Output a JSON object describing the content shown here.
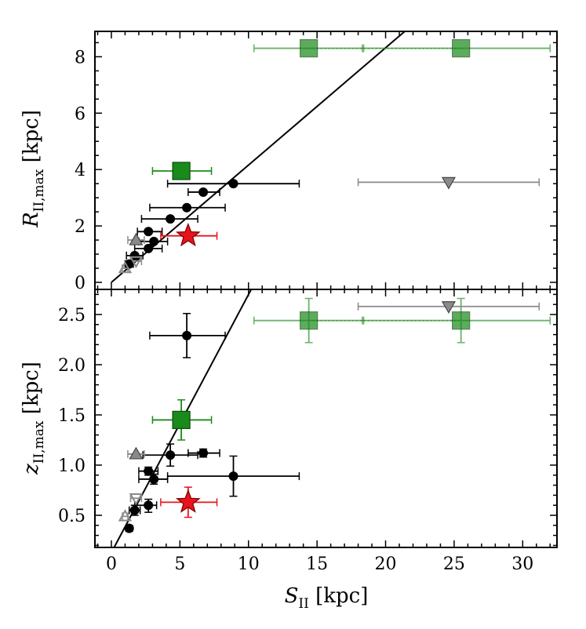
{
  "chart_data": [
    {
      "type": "scatter",
      "panel": "top",
      "xlabel": "",
      "ylabel_main": "R",
      "ylabel_sub": "II,max",
      "ylabel_unit": " [kpc]",
      "xlim": [
        -1.2,
        32.5
      ],
      "ylim": [
        -0.25,
        8.9
      ],
      "yticks": [
        0,
        2,
        4,
        6,
        8
      ],
      "ytick_labels": [
        "0",
        "2",
        "4",
        "6",
        "8"
      ],
      "fit_line": {
        "x1": 0,
        "y1": 0,
        "x2": 21.4,
        "y2": 8.9
      },
      "series": [
        {
          "name": "black circles",
          "marker": "circle",
          "color": "#000000",
          "points": [
            {
              "x": 1.3,
              "y": 0.65,
              "xerr": [
                0.3,
                0.3
              ]
            },
            {
              "x": 1.7,
              "y": 0.95,
              "xerr": [
                0.6,
                0.6
              ]
            },
            {
              "x": 2.7,
              "y": 1.2,
              "xerr": [
                1.0,
                1.0
              ]
            },
            {
              "x": 3.1,
              "y": 1.45,
              "xerr": [
                1.1,
                1.0
              ]
            },
            {
              "x": 2.7,
              "y": 1.8,
              "xerr": [
                0.8,
                1.0
              ]
            },
            {
              "x": 4.3,
              "y": 2.25,
              "xerr": [
                2.1,
                2.0
              ]
            },
            {
              "x": 5.5,
              "y": 2.65,
              "xerr": [
                2.7,
                2.8
              ]
            },
            {
              "x": 6.7,
              "y": 3.2,
              "xerr": [
                1.1,
                1.2
              ]
            },
            {
              "x": 8.9,
              "y": 3.5,
              "xerr": [
                4.8,
                4.8
              ]
            }
          ]
        },
        {
          "name": "green squares",
          "marker": "square",
          "color": "#1a8a1a",
          "points": [
            {
              "x": 5.1,
              "y": 3.95,
              "xerr": [
                2.1,
                2.2
              ]
            },
            {
              "x": 14.4,
              "y": 8.3,
              "xerr": [
                4.0,
                4.0
              ]
            },
            {
              "x": 25.5,
              "y": 8.3,
              "xerr": [
                7.2,
                6.5
              ]
            }
          ]
        },
        {
          "name": "red star",
          "marker": "star",
          "color": "#e8141c",
          "points": [
            {
              "x": 5.6,
              "y": 1.65,
              "xerr": [
                2.0,
                2.1
              ]
            }
          ]
        },
        {
          "name": "gray triangle up",
          "marker": "triangle-up",
          "color": "#8a8a8a",
          "points": [
            {
              "x": 1.8,
              "y": 1.5,
              "xerr": [
                0.6,
                0.6
              ]
            }
          ]
        },
        {
          "name": "gray triangle down",
          "marker": "triangle-down",
          "color": "#8a8a8a",
          "points": [
            {
              "x": 24.6,
              "y": 3.55,
              "xerr": [
                6.6,
                6.6
              ]
            }
          ]
        },
        {
          "name": "open triangle up",
          "marker": "open-triangle-up",
          "color": "#8a8a8a",
          "points": [
            {
              "x": 1.0,
              "y": 0.5,
              "xerr": [
                0.2,
                0.2
              ]
            }
          ]
        },
        {
          "name": "open triangle down",
          "marker": "open-triangle-down",
          "color": "#8a8a8a",
          "points": [
            {
              "x": 1.8,
              "y": 0.75,
              "xerr": [
                0.4,
                0.4
              ]
            }
          ]
        }
      ]
    },
    {
      "type": "scatter",
      "panel": "bottom",
      "xlabel_main": "S",
      "xlabel_sub": "II",
      "xlabel_unit": " [kpc]",
      "ylabel_main": "z",
      "ylabel_sub": "II,max",
      "ylabel_unit": " [kpc]",
      "xlim": [
        -1.2,
        32.5
      ],
      "ylim": [
        0.18,
        2.75
      ],
      "xticks": [
        0,
        5,
        10,
        15,
        20,
        25,
        30
      ],
      "xtick_labels": [
        "0",
        "5",
        "10",
        "15",
        "20",
        "25",
        "30"
      ],
      "yticks": [
        0.5,
        1.0,
        1.5,
        2.0,
        2.5
      ],
      "ytick_labels": [
        "0.5",
        "1.0",
        "1.5",
        "2.0",
        "2.5"
      ],
      "fit_line": {
        "x1": 0.2,
        "y1": 0.18,
        "x2": 10.2,
        "y2": 2.75
      },
      "series": [
        {
          "name": "black circles",
          "marker": "circle",
          "color": "#000000",
          "points": [
            {
              "x": 1.3,
              "y": 0.37,
              "xerr": [
                0,
                0
              ],
              "yerr": [
                0.03,
                0.03
              ]
            },
            {
              "x": 1.7,
              "y": 0.55,
              "xerr": [
                0.4,
                0.4
              ],
              "yerr": [
                0.05,
                0.05
              ]
            },
            {
              "x": 2.7,
              "y": 0.6,
              "xerr": [
                1.0,
                0.6
              ],
              "yerr": [
                0.07,
                0.06
              ]
            },
            {
              "x": 2.7,
              "y": 0.94,
              "xerr": [
                0.7,
                0.7
              ],
              "yerr": [
                0.04,
                0.04
              ]
            },
            {
              "x": 3.1,
              "y": 0.86,
              "xerr": [
                1.1,
                1.0
              ],
              "yerr": [
                0.05,
                0.05
              ]
            },
            {
              "x": 4.3,
              "y": 1.1,
              "xerr": [
                2.0,
                2.0
              ],
              "yerr": [
                0.11,
                0.11
              ]
            },
            {
              "x": 5.5,
              "y": 2.29,
              "xerr": [
                2.7,
                2.8
              ],
              "yerr": [
                0.22,
                0.22
              ]
            },
            {
              "x": 6.7,
              "y": 1.12,
              "xerr": [
                1.1,
                1.2
              ],
              "yerr": [
                0.04,
                0.04
              ]
            },
            {
              "x": 8.9,
              "y": 0.89,
              "xerr": [
                4.8,
                4.8
              ],
              "yerr": [
                0.2,
                0.2
              ]
            }
          ]
        },
        {
          "name": "green squares",
          "marker": "square",
          "color": "#1a8a1a",
          "points": [
            {
              "x": 5.1,
              "y": 1.45,
              "xerr": [
                2.1,
                2.2
              ],
              "yerr": [
                0.2,
                0.2
              ]
            },
            {
              "x": 14.4,
              "y": 2.44,
              "xerr": [
                4.0,
                4.0
              ],
              "yerr": [
                0.22,
                0.22
              ]
            },
            {
              "x": 25.5,
              "y": 2.44,
              "xerr": [
                7.2,
                6.5
              ],
              "yerr": [
                0.22,
                0.22
              ]
            }
          ]
        },
        {
          "name": "red star",
          "marker": "star",
          "color": "#e8141c",
          "points": [
            {
              "x": 5.6,
              "y": 0.63,
              "xerr": [
                2.0,
                2.1
              ],
              "yerr": [
                0.15,
                0.15
              ]
            }
          ]
        },
        {
          "name": "gray triangle up",
          "marker": "triangle-up",
          "color": "#8a8a8a",
          "points": [
            {
              "x": 1.8,
              "y": 1.11,
              "xerr": [
                0.6,
                0.6
              ]
            }
          ]
        },
        {
          "name": "gray triangle down",
          "marker": "triangle-down",
          "color": "#8a8a8a",
          "points": [
            {
              "x": 24.6,
              "y": 2.58,
              "xerr": [
                6.6,
                6.6
              ]
            }
          ]
        },
        {
          "name": "open triangle up",
          "marker": "open-triangle-up",
          "color": "#8a8a8a",
          "points": [
            {
              "x": 1.0,
              "y": 0.49,
              "xerr": [
                0.2,
                0.2
              ]
            }
          ]
        },
        {
          "name": "open triangle down",
          "marker": "open-triangle-down",
          "color": "#8a8a8a",
          "points": [
            {
              "x": 1.8,
              "y": 0.67,
              "xerr": [
                0.4,
                0.4
              ]
            }
          ]
        }
      ]
    }
  ]
}
